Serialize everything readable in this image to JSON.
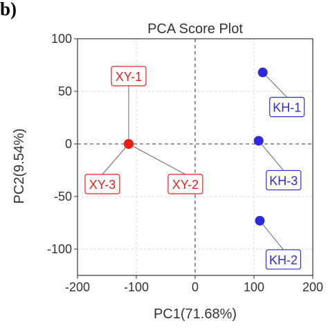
{
  "panel_label": "b)",
  "chart_data": {
    "type": "scatter",
    "title": "PCA Score Plot",
    "xlabel": "PC1(71.68%)",
    "ylabel": "PC2(9.54%)",
    "xlim": [
      -200,
      200
    ],
    "ylim": [
      -125,
      100
    ],
    "xticks": [
      -200,
      -100,
      0,
      100,
      200
    ],
    "yticks": [
      -100,
      -50,
      0,
      50,
      100
    ],
    "grid": "dashed",
    "reference_lines": {
      "x": 0,
      "y": 0
    },
    "legend": "none",
    "series": [
      {
        "color": "#ee1b1b",
        "points": [
          {
            "label": "XY-1",
            "x": -113,
            "y": 0
          },
          {
            "label": "XY-2",
            "x": -113,
            "y": 0
          },
          {
            "label": "XY-3",
            "x": -113,
            "y": 0
          }
        ]
      },
      {
        "color": "#2b2bd8",
        "points": [
          {
            "label": "KH-1",
            "x": 115,
            "y": 68
          },
          {
            "label": "KH-2",
            "x": 110,
            "y": -73
          },
          {
            "label": "KH-3",
            "x": 108,
            "y": 3
          }
        ]
      }
    ]
  }
}
